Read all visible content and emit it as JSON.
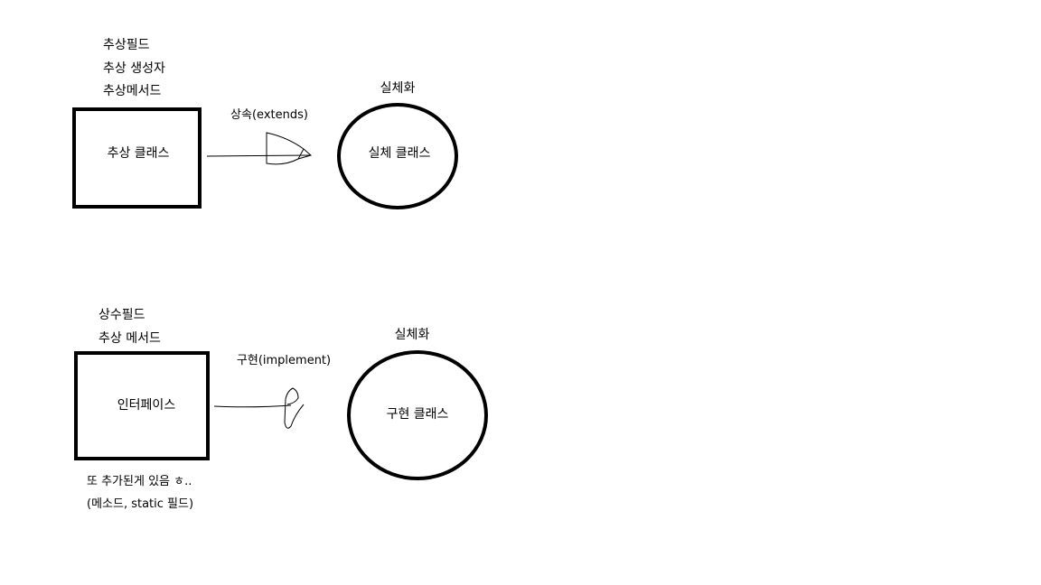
{
  "top": {
    "members": [
      "추상필드",
      "추상 생성자",
      "추상메서드"
    ],
    "box_label": "추상 클래스",
    "arrow_label": "상속(extends)",
    "circle_title": "실체화",
    "circle_label": "실체 클래스"
  },
  "bottom": {
    "members": [
      "상수필드",
      "추상 메서드"
    ],
    "box_label": "인터페이스",
    "arrow_label": "구현(implement)",
    "circle_title": "실체화",
    "circle_label": "구현 클래스",
    "note_line1": "또 추가된게 있음 ㅎ..",
    "note_line2": "(메소드, static 필드)"
  }
}
